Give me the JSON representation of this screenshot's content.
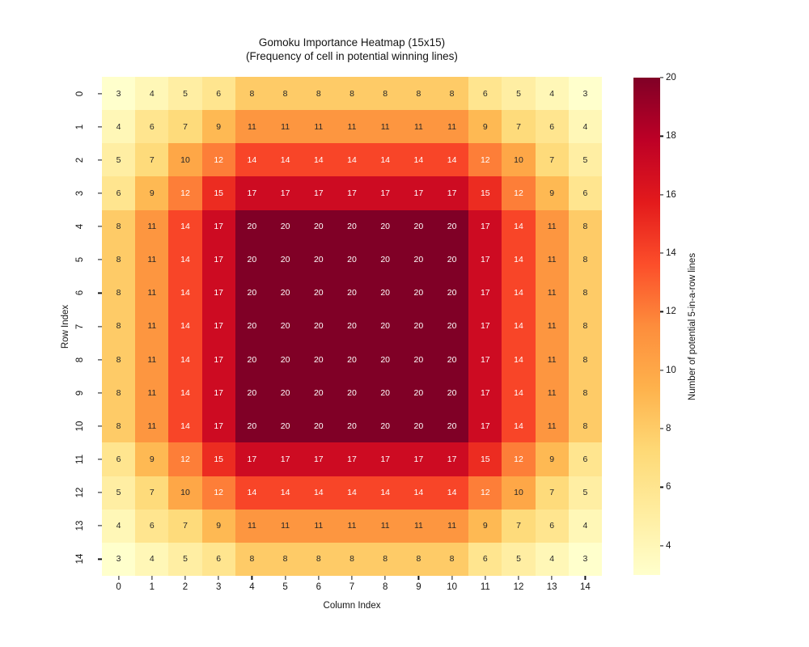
{
  "figure": {
    "background": "#ffffff"
  },
  "chart_data": {
    "type": "heatmap",
    "title": "Gomoku Importance Heatmap (15x15)",
    "subtitle": "(Frequency of cell in potential winning lines)",
    "xlabel": "Column Index",
    "ylabel": "Row Index",
    "x_tick_labels": [
      "0",
      "1",
      "2",
      "3",
      "4",
      "5",
      "6",
      "7",
      "8",
      "9",
      "10",
      "11",
      "12",
      "13",
      "14"
    ],
    "y_tick_labels": [
      "0",
      "1",
      "2",
      "3",
      "4",
      "5",
      "6",
      "7",
      "8",
      "9",
      "10",
      "11",
      "12",
      "13",
      "14"
    ],
    "vmin": 3,
    "vmax": 20,
    "grid": false,
    "matrix": [
      [
        3,
        4,
        5,
        6,
        8,
        8,
        8,
        8,
        8,
        8,
        8,
        6,
        5,
        4,
        3
      ],
      [
        4,
        6,
        7,
        9,
        11,
        11,
        11,
        11,
        11,
        11,
        11,
        9,
        7,
        6,
        4
      ],
      [
        5,
        7,
        10,
        12,
        14,
        14,
        14,
        14,
        14,
        14,
        14,
        12,
        10,
        7,
        5
      ],
      [
        6,
        9,
        12,
        15,
        17,
        17,
        17,
        17,
        17,
        17,
        17,
        15,
        12,
        9,
        6
      ],
      [
        8,
        11,
        14,
        17,
        20,
        20,
        20,
        20,
        20,
        20,
        20,
        17,
        14,
        11,
        8
      ],
      [
        8,
        11,
        14,
        17,
        20,
        20,
        20,
        20,
        20,
        20,
        20,
        17,
        14,
        11,
        8
      ],
      [
        8,
        11,
        14,
        17,
        20,
        20,
        20,
        20,
        20,
        20,
        20,
        17,
        14,
        11,
        8
      ],
      [
        8,
        11,
        14,
        17,
        20,
        20,
        20,
        20,
        20,
        20,
        20,
        17,
        14,
        11,
        8
      ],
      [
        8,
        11,
        14,
        17,
        20,
        20,
        20,
        20,
        20,
        20,
        20,
        17,
        14,
        11,
        8
      ],
      [
        8,
        11,
        14,
        17,
        20,
        20,
        20,
        20,
        20,
        20,
        20,
        17,
        14,
        11,
        8
      ],
      [
        8,
        11,
        14,
        17,
        20,
        20,
        20,
        20,
        20,
        20,
        20,
        17,
        14,
        11,
        8
      ],
      [
        6,
        9,
        12,
        15,
        17,
        17,
        17,
        17,
        17,
        17,
        17,
        15,
        12,
        9,
        6
      ],
      [
        5,
        7,
        10,
        12,
        14,
        14,
        14,
        14,
        14,
        14,
        14,
        12,
        10,
        7,
        5
      ],
      [
        4,
        6,
        7,
        9,
        11,
        11,
        11,
        11,
        11,
        11,
        11,
        9,
        7,
        6,
        4
      ],
      [
        3,
        4,
        5,
        6,
        8,
        8,
        8,
        8,
        8,
        8,
        8,
        6,
        5,
        4,
        3
      ]
    ],
    "colormap": {
      "name": "YlOrRd",
      "stops": [
        "#ffffcc",
        "#ffeda0",
        "#fed976",
        "#feb24c",
        "#fd8d3c",
        "#fc4e2a",
        "#e31a1c",
        "#bd0026",
        "#800026"
      ]
    },
    "annotation_text_colors": {
      "dark": "#262626",
      "light": "#ffffff"
    },
    "colorbar": {
      "label": "Number of potential 5-in-a-row lines",
      "ticks": [
        4,
        6,
        8,
        10,
        12,
        14,
        16,
        18,
        20
      ],
      "position": "right"
    }
  }
}
